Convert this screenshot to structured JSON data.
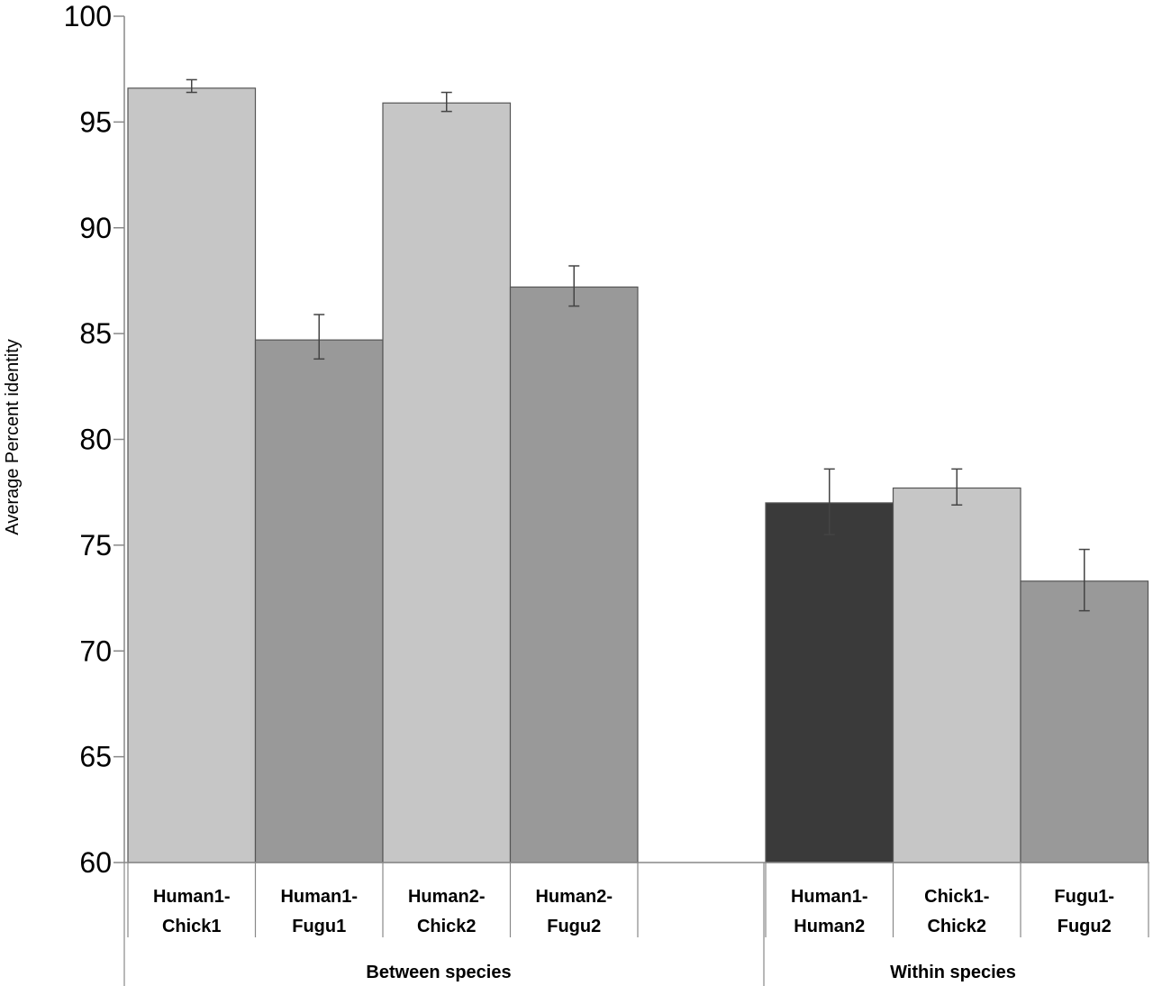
{
  "chart_data": {
    "type": "bar",
    "ylabel": "Average Percent identity",
    "ylim": [
      60,
      100
    ],
    "yticks": [
      60,
      65,
      70,
      75,
      80,
      85,
      90,
      95,
      100
    ],
    "grid": false,
    "groups": [
      {
        "label": "Between species",
        "bars": [
          {
            "label": [
              "Human1-",
              "Chick1"
            ],
            "value": 96.6,
            "err_low": 96.4,
            "err_high": 97.0,
            "color": "#c6c6c6"
          },
          {
            "label": [
              "Human1-",
              "Fugu1"
            ],
            "value": 84.7,
            "err_low": 83.8,
            "err_high": 85.9,
            "color": "#999999"
          },
          {
            "label": [
              "Human2-",
              "Chick2"
            ],
            "value": 95.9,
            "err_low": 95.5,
            "err_high": 96.4,
            "color": "#c6c6c6"
          },
          {
            "label": [
              "Human2-",
              "Fugu2"
            ],
            "value": 87.2,
            "err_low": 86.3,
            "err_high": 88.2,
            "color": "#999999"
          }
        ]
      },
      {
        "label": "Within species",
        "bars": [
          {
            "label": [
              "Human1-",
              "Human2"
            ],
            "value": 77.0,
            "err_low": 75.5,
            "err_high": 78.6,
            "color": "#3a3a3a"
          },
          {
            "label": [
              "Chick1-",
              "Chick2"
            ],
            "value": 77.7,
            "err_low": 76.9,
            "err_high": 78.6,
            "color": "#c6c6c6"
          },
          {
            "label": [
              "Fugu1-",
              "Fugu2"
            ],
            "value": 73.3,
            "err_low": 71.9,
            "err_high": 74.8,
            "color": "#999999"
          }
        ]
      }
    ]
  }
}
